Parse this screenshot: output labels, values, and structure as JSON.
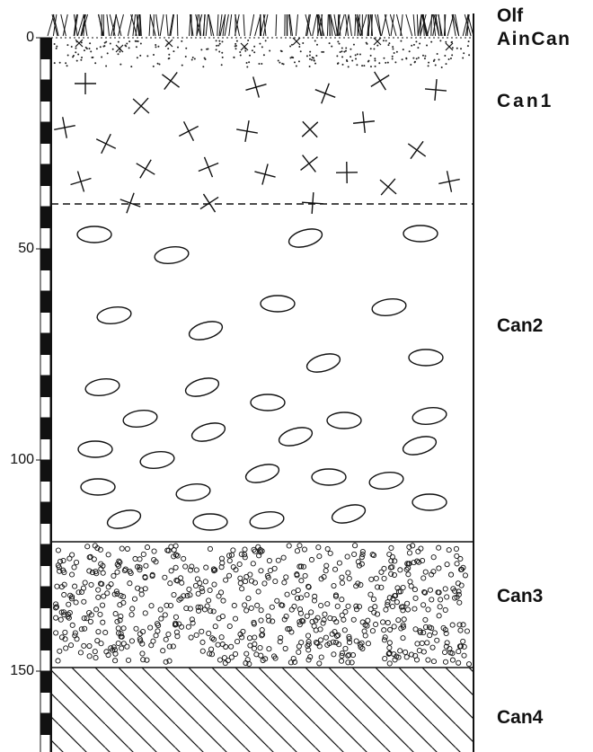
{
  "horizons": [
    {
      "label": "Olf"
    },
    {
      "label": "AinCan"
    },
    {
      "label": "Can1"
    },
    {
      "label": "Can2"
    },
    {
      "label": "Can3"
    },
    {
      "label": "Can4"
    }
  ],
  "depth_scale": {
    "labels": [
      0,
      50,
      100,
      150
    ]
  }
}
